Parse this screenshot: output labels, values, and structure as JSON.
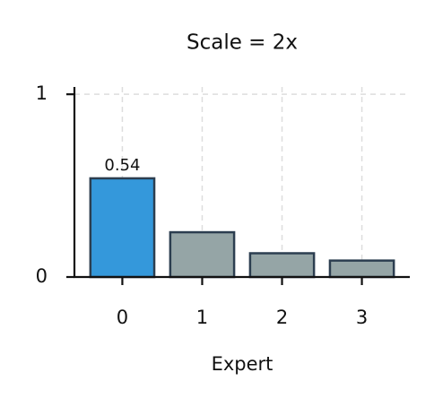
{
  "chart_data": {
    "type": "bar",
    "title": "Scale = 2x",
    "x_label": "Expert",
    "categories": [
      "0",
      "1",
      "2",
      "3"
    ],
    "values": [
      0.54,
      0.245,
      0.13,
      0.09
    ],
    "value_labels": [
      "0.54",
      null,
      null,
      null
    ],
    "colors": [
      "#3498db",
      "#95a5a6",
      "#95a5a6",
      "#95a5a6"
    ],
    "edgecolor": "#2c3e50",
    "ylim": [
      0,
      1.04
    ],
    "yticks": [
      0,
      1
    ],
    "grid": true
  }
}
